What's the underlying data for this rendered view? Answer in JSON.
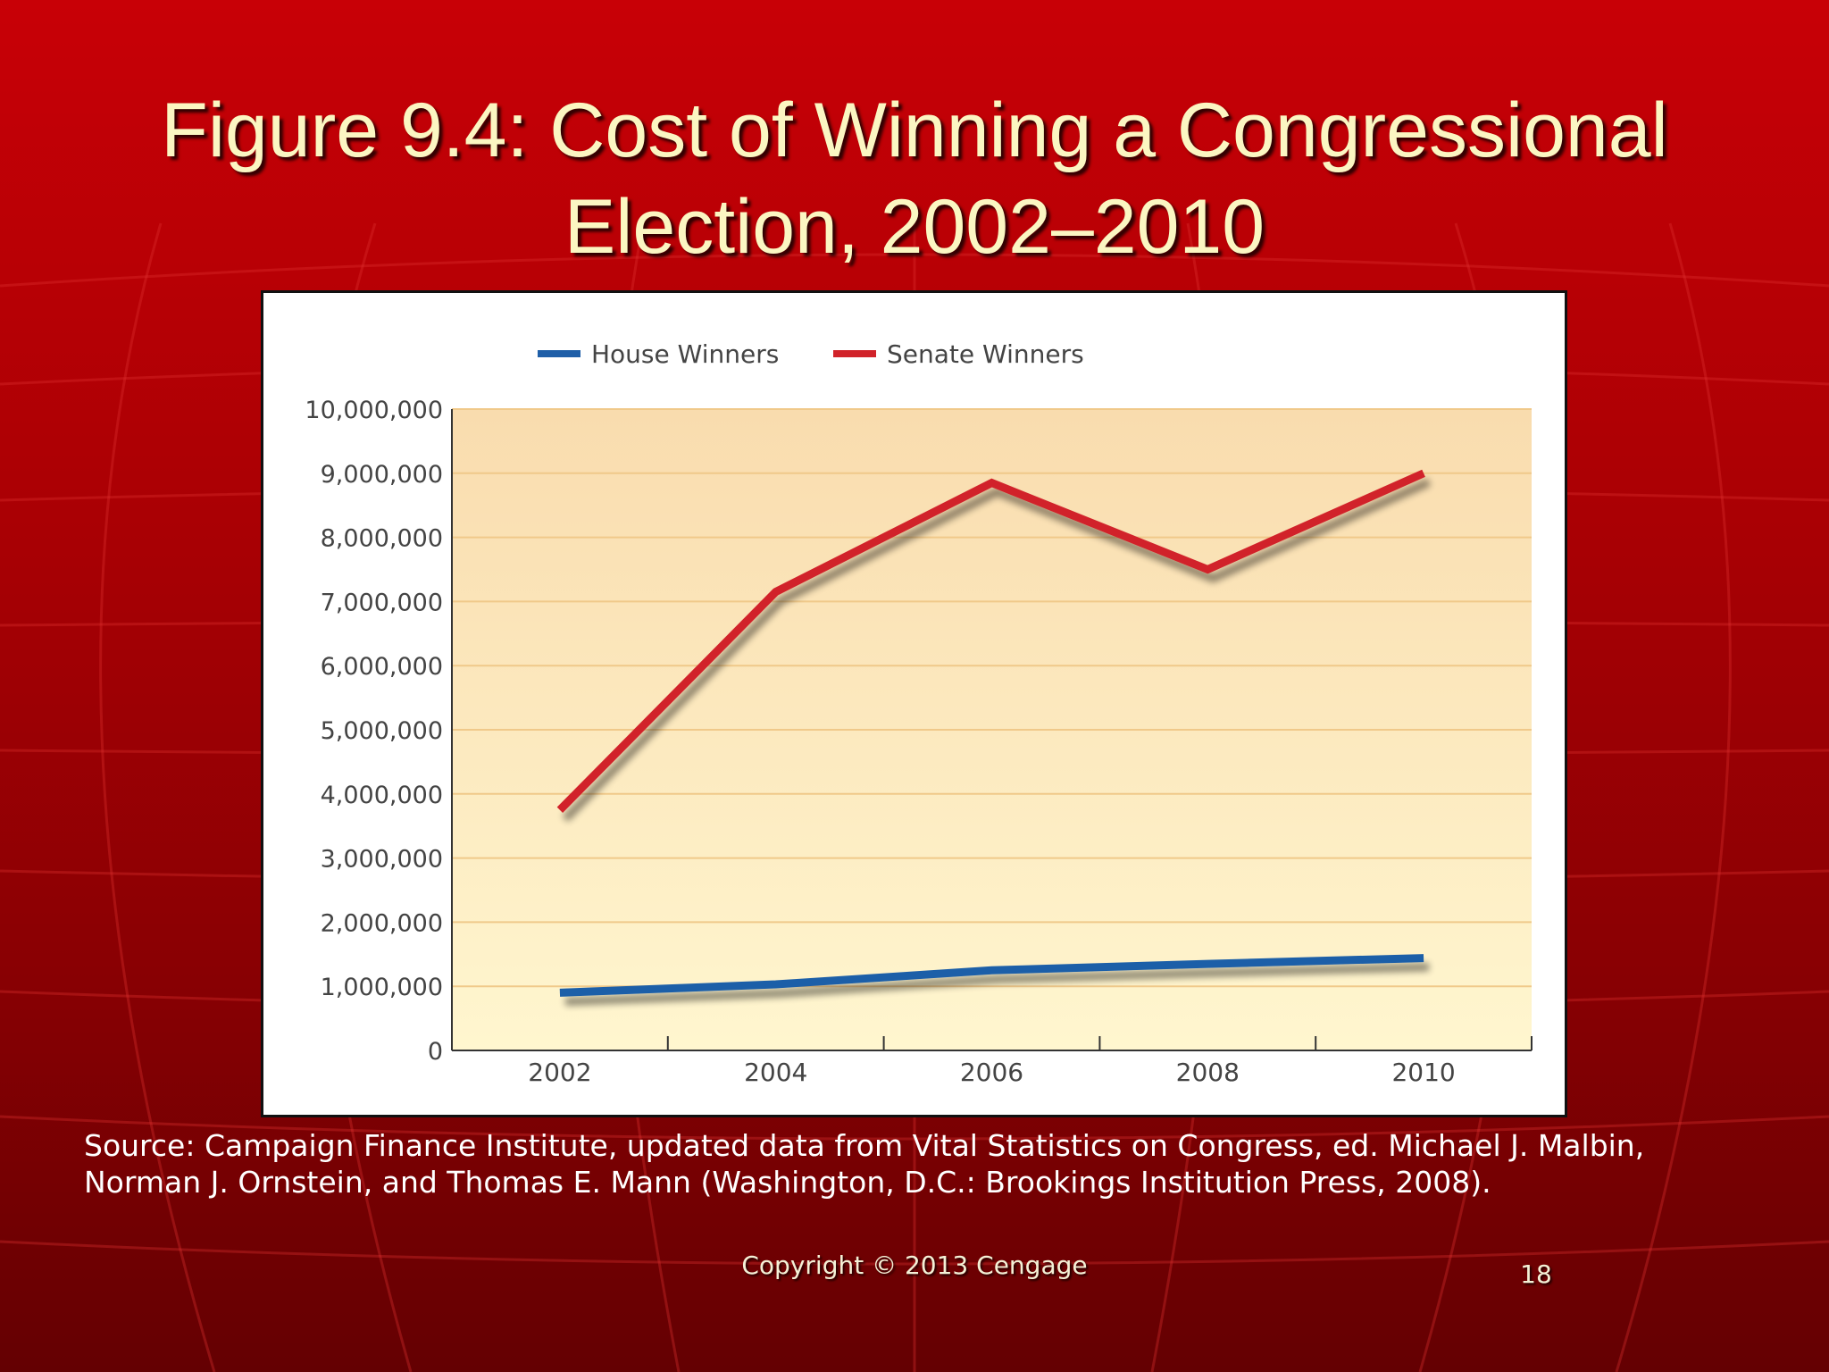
{
  "slide": {
    "title_line1": "Figure 9.4: Cost of Winning a Congressional",
    "title_line2": "Election, 2002–2010",
    "source_line1": "Source: Campaign Finance Institute, updated data from Vital Statistics on Congress, ed. Michael J. Malbin,",
    "source_line2": "Norman J. Ornstein, and Thomas E. Mann (Washington, D.C.: Brookings Institution Press, 2008).",
    "copyright": "Copyright © 2013 Cengage",
    "page_number": "18"
  },
  "chart_data": {
    "type": "line",
    "title": "Figure 9.4: Cost of Winning a Congressional Election, 2002–2010",
    "xlabel": "",
    "ylabel": "",
    "x": [
      "2002",
      "2004",
      "2006",
      "2008",
      "2010"
    ],
    "ylim": [
      0,
      10000000
    ],
    "yticks": [
      "0",
      "1,000,000",
      "2,000,000",
      "3,000,000",
      "4,000,000",
      "5,000,000",
      "6,000,000",
      "7,000,000",
      "8,000,000",
      "9,000,000",
      "10,000,000"
    ],
    "legend_position": "top",
    "series": [
      {
        "name": "House Winners",
        "color": "#1f5fa8",
        "values": [
          900000,
          1030000,
          1250000,
          1350000,
          1440000
        ]
      },
      {
        "name": "Senate Winners",
        "color": "#d1232a",
        "values": [
          3750000,
          7150000,
          8850000,
          7500000,
          9000000
        ]
      }
    ],
    "colors": {
      "plot_top": "#f9dcae",
      "plot_bottom": "#fff6cf",
      "grid": "#f0c98a"
    }
  }
}
